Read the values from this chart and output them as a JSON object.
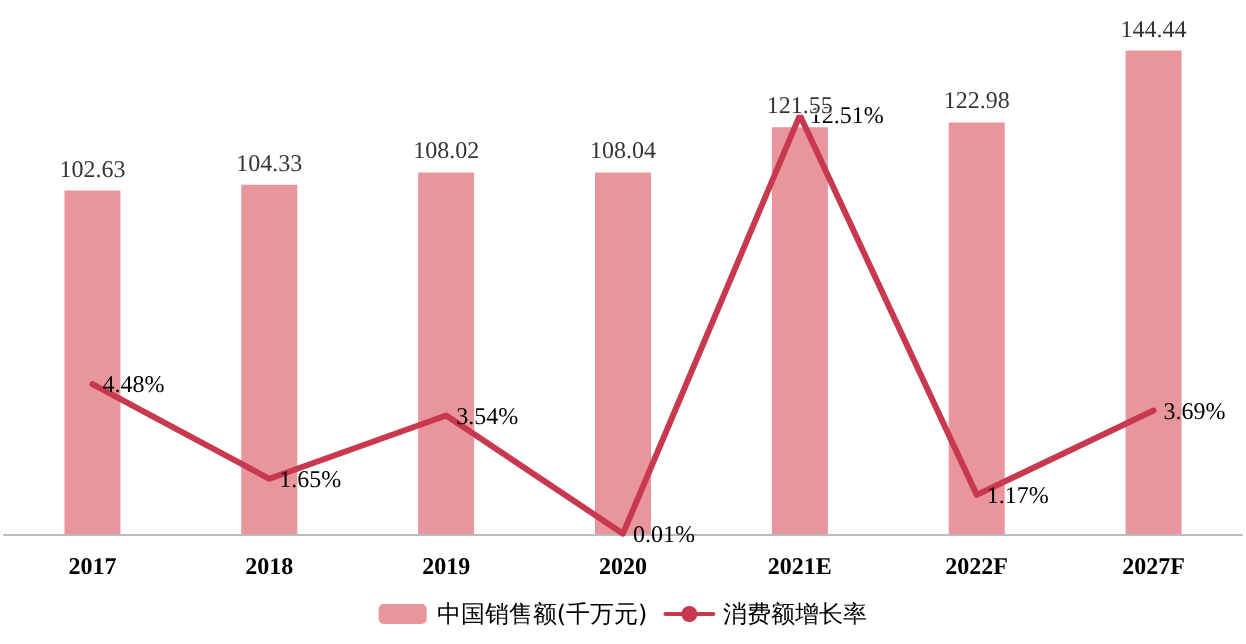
{
  "chart_data": {
    "type": "bar",
    "categories": [
      "2017",
      "2018",
      "2019",
      "2020",
      "2021E",
      "2022F",
      "2027F"
    ],
    "series": [
      {
        "name": "中国销售额(千万元)",
        "color": "#e8959b",
        "values": [
          102.63,
          104.33,
          108.02,
          108.04,
          121.55,
          122.98,
          144.44
        ],
        "value_labels": [
          "102.63",
          "104.33",
          "108.02",
          "108.04",
          "121.55",
          "122.98",
          "144.44"
        ]
      },
      {
        "name": "消费额增长率",
        "type": "line",
        "axis": "y2",
        "color": "#c8384e",
        "values": [
          4.48,
          1.65,
          3.54,
          0.01,
          12.51,
          1.17,
          3.69
        ],
        "value_labels": [
          "4.48%",
          "1.65%",
          "3.54%",
          "0.01%",
          "12.51%",
          "1.17%",
          "3.69%"
        ]
      }
    ],
    "tick_labels": "x",
    "legend": "bottom",
    "grid": false,
    "marker": "none",
    "line_style": "solid"
  }
}
